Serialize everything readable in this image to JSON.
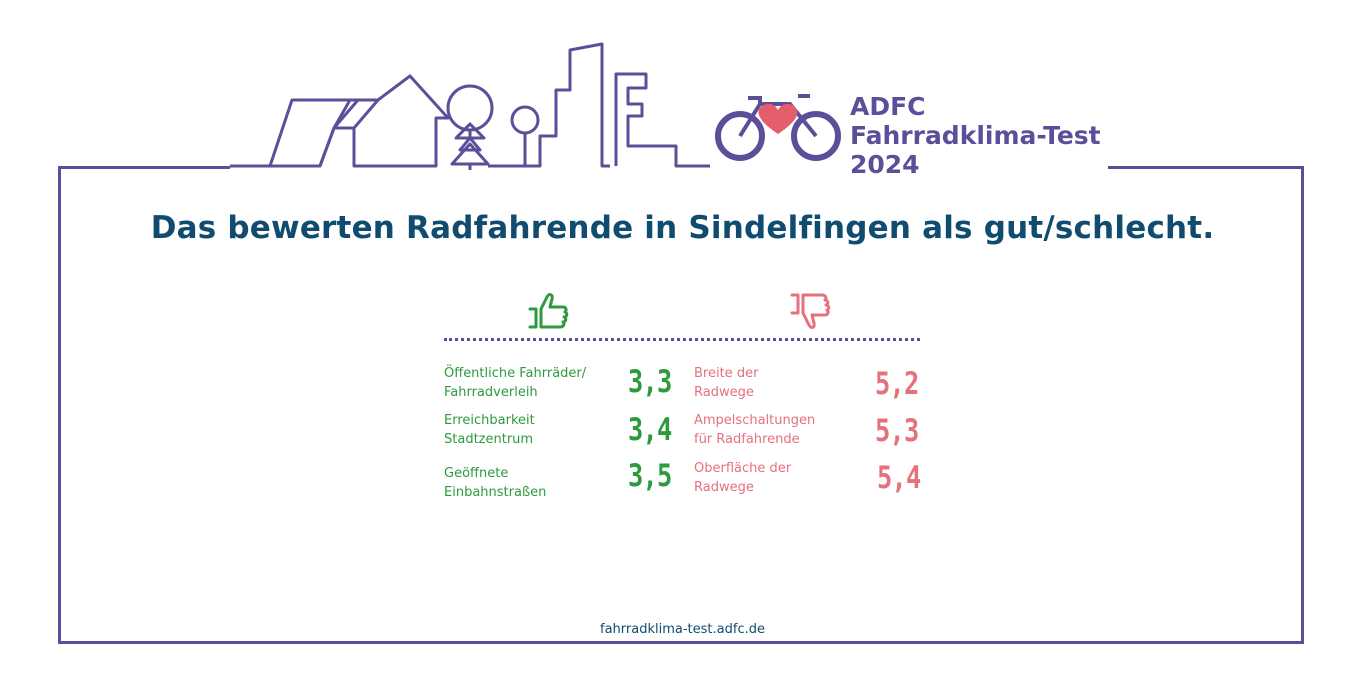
{
  "brand": {
    "line1": "ADFC",
    "line2": "Fahrradklima-Test",
    "line3": "2024"
  },
  "headline": "Das bewerten Radfahrende in Sindelfingen als gut/schlecht.",
  "icons": {
    "good": "thumbs-up-icon",
    "bad": "thumbs-down-icon",
    "bike": "bike-heart-icon",
    "skyline": "city-skyline-icon"
  },
  "colors": {
    "frame": "#5b4f9a",
    "headline": "#0f4c70",
    "good": "#2e9a3e",
    "bad": "#e4717b",
    "heart": "#e35d6a"
  },
  "good_items": [
    {
      "line1": "Öffentliche Fahrräder/",
      "line2": "Fahrradverleih",
      "score": "3,3"
    },
    {
      "line1": "Erreichbarkeit",
      "line2": "Stadtzentrum",
      "score": "3,4"
    },
    {
      "line1": "Geöffnete",
      "line2": "Einbahnstraßen",
      "score": "3,5"
    }
  ],
  "bad_items": [
    {
      "line1": "Breite der",
      "line2": "Radwege",
      "score": "5,2"
    },
    {
      "line1": "Ampelschaltungen",
      "line2": "für Radfahrende",
      "score": "5,3"
    },
    {
      "line1": "Oberfläche der",
      "line2": "Radwege",
      "score": "5,4"
    }
  ],
  "footer": "fahrradklima-test.adfc.de"
}
